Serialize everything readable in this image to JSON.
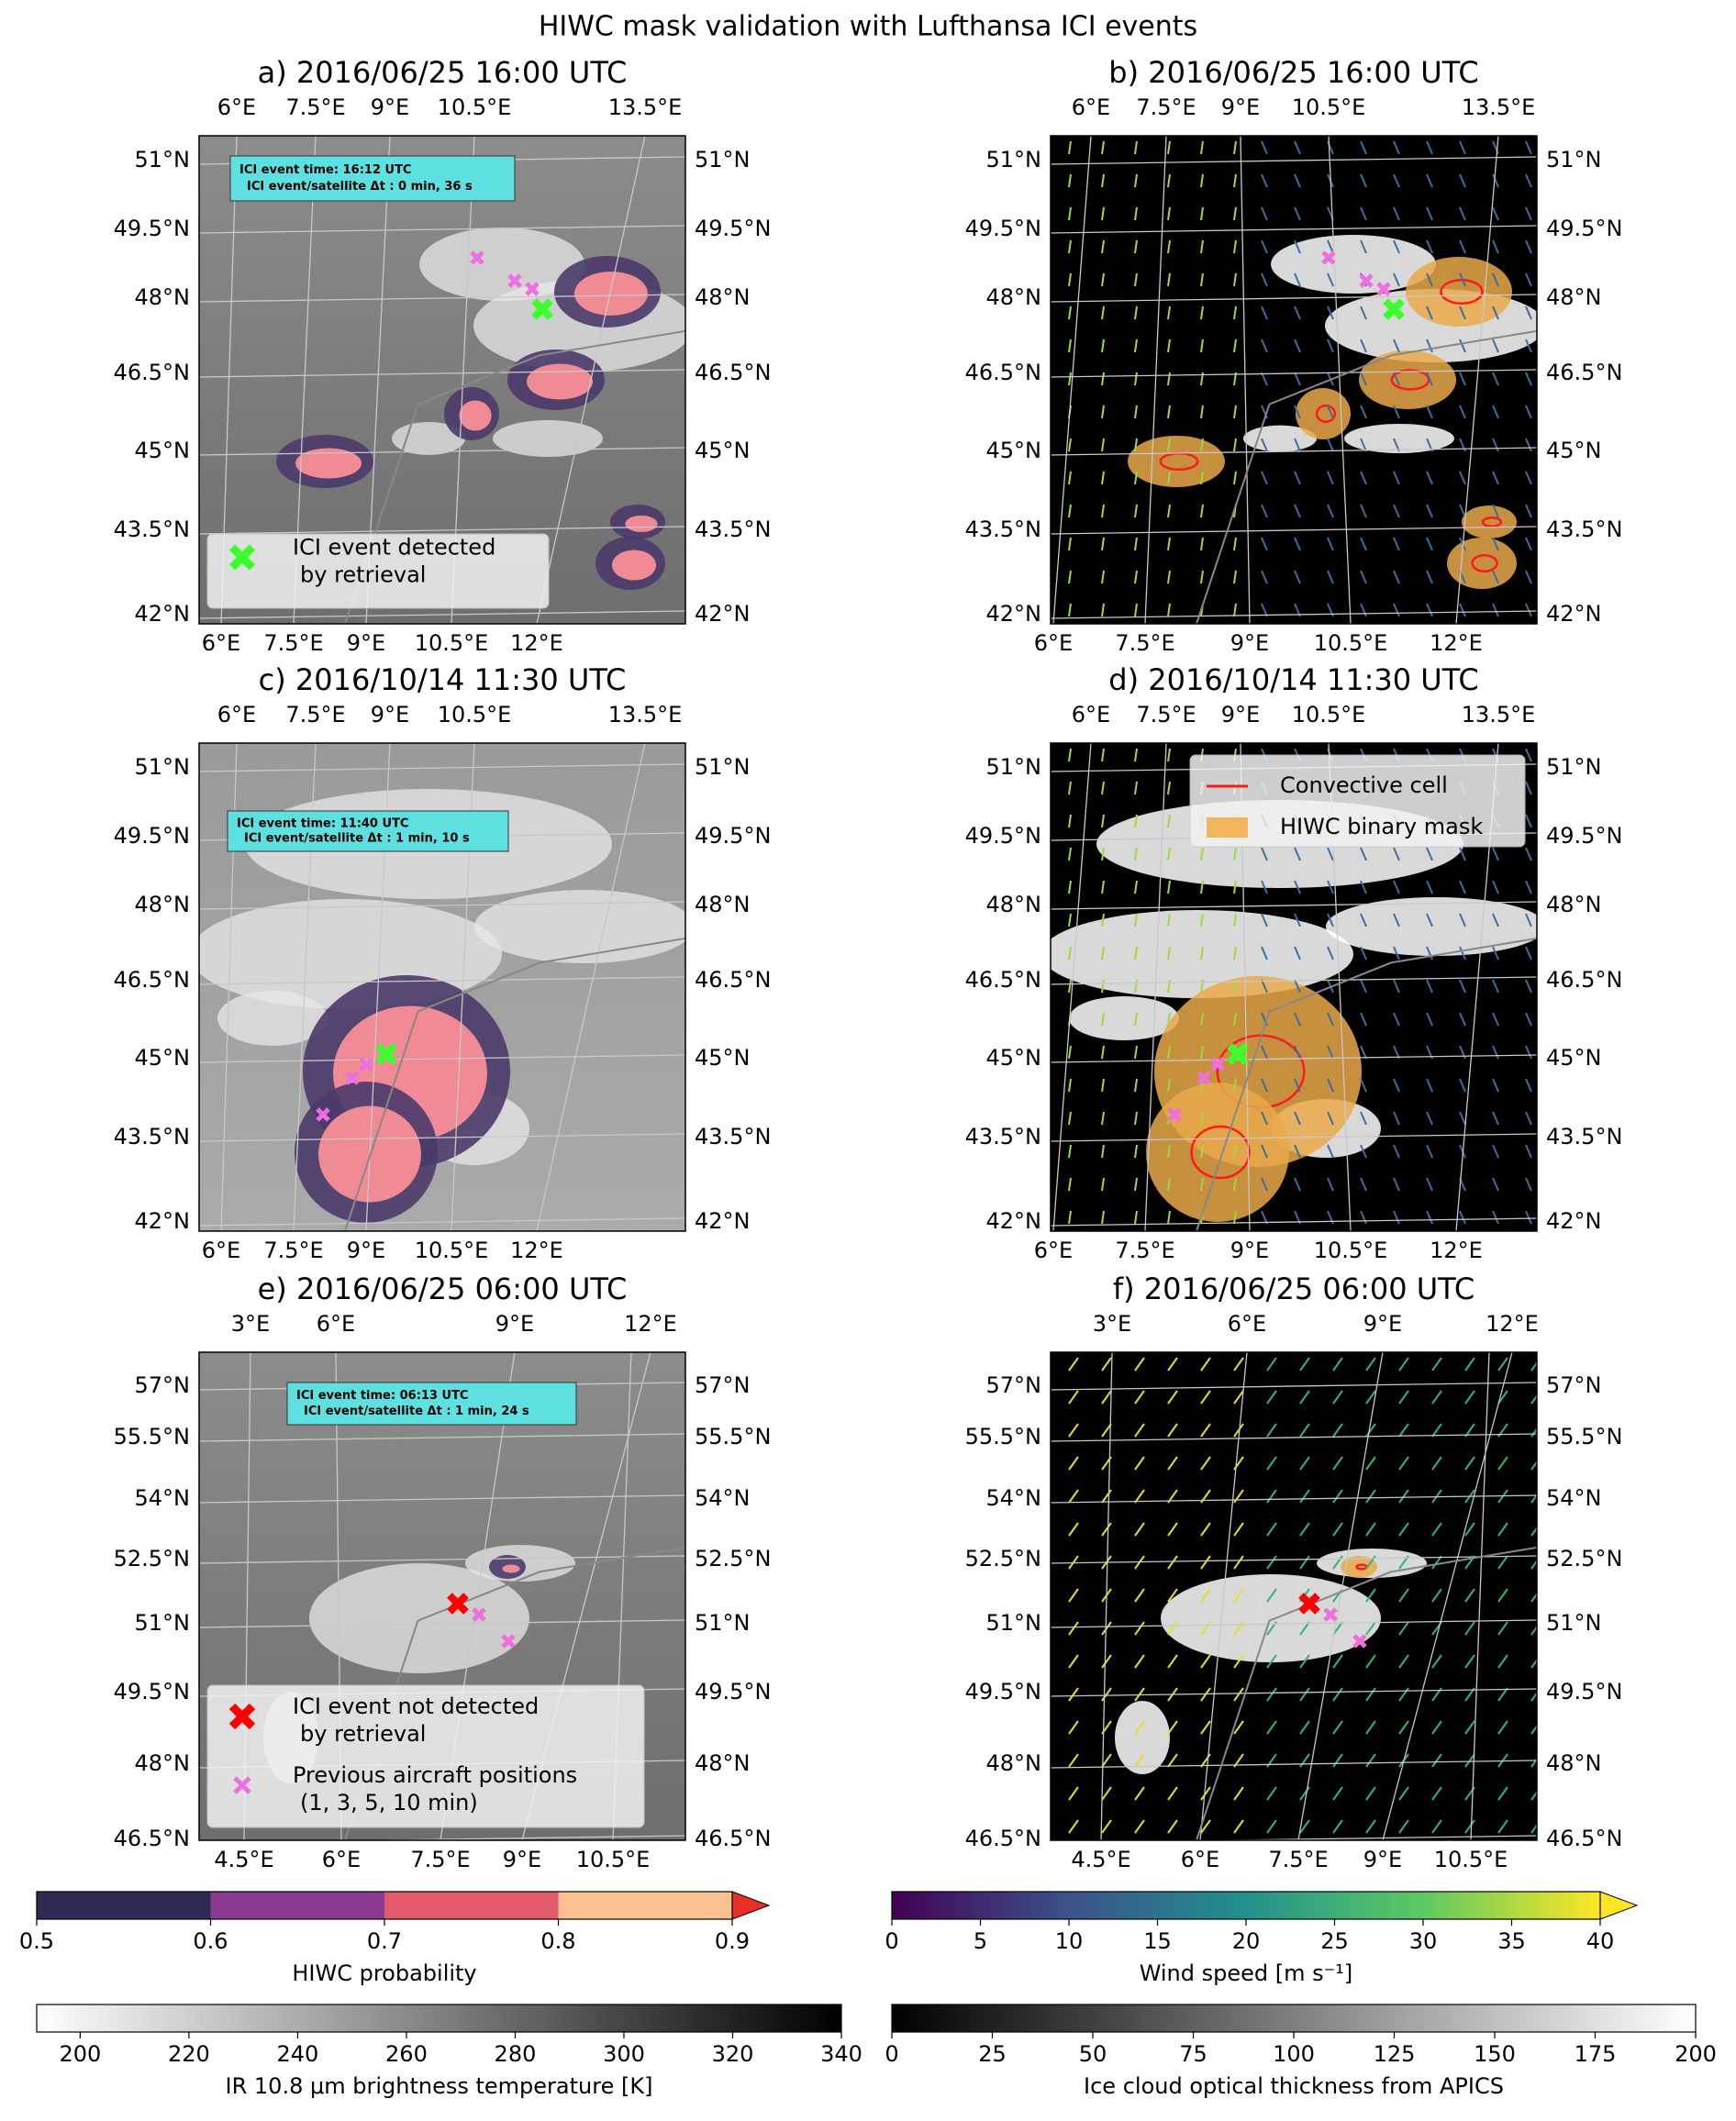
{
  "title": "HIWC mask validation with Lufthansa ICI events",
  "panels": [
    {
      "title": "a) 2016/06/25 16:00 UTC",
      "lon_top": [
        "6°E",
        "7.5°E",
        "9°E",
        "10.5°E",
        "13.5°E"
      ],
      "lon_bottom": [
        "6°E",
        "7.5°E",
        "9°E",
        "10.5°E",
        "12°E"
      ],
      "lat": [
        "51°N",
        "49.5°N",
        "48°N",
        "46.5°N",
        "45°N",
        "43.5°N",
        "42°N"
      ],
      "annotation": [
        "ICI event time: 16:12 UTC",
        "ICI event/satellite Δt : 0 min, 36 s"
      ],
      "legend": [
        {
          "lines": [
            "ICI event detected",
            "by retrieval"
          ],
          "color": "#3dff2e",
          "marker": "X"
        }
      ]
    },
    {
      "title": "b) 2016/06/25 16:00 UTC",
      "lon_top": [
        "6°E",
        "7.5°E",
        "9°E",
        "10.5°E",
        "13.5°E"
      ],
      "lon_bottom": [
        "6°E",
        "7.5°E",
        "9°E",
        "10.5°E",
        "12°E"
      ],
      "lat": [
        "51°N",
        "49.5°N",
        "48°N",
        "46.5°N",
        "45°N",
        "43.5°N",
        "42°N"
      ]
    },
    {
      "title": "c) 2016/10/14 11:30 UTC",
      "lon_top": [
        "6°E",
        "7.5°E",
        "9°E",
        "10.5°E",
        "13.5°E"
      ],
      "lon_bottom": [
        "6°E",
        "7.5°E",
        "9°E",
        "10.5°E",
        "12°E"
      ],
      "lat": [
        "51°N",
        "49.5°N",
        "48°N",
        "46.5°N",
        "45°N",
        "43.5°N",
        "42°N"
      ],
      "annotation": [
        "ICI event time: 11:40 UTC",
        "ICI event/satellite Δt : 1 min, 10 s"
      ]
    },
    {
      "title": "d) 2016/10/14 11:30 UTC",
      "lon_top": [
        "6°E",
        "7.5°E",
        "9°E",
        "10.5°E",
        "13.5°E"
      ],
      "lon_bottom": [
        "6°E",
        "7.5°E",
        "9°E",
        "10.5°E",
        "12°E"
      ],
      "lat": [
        "51°N",
        "49.5°N",
        "48°N",
        "46.5°N",
        "45°N",
        "43.5°N",
        "42°N"
      ],
      "legend": [
        {
          "lines": [
            "Convective cell"
          ],
          "color": "#ff1a1a",
          "marker": "line"
        },
        {
          "lines": [
            "HIWC binary mask"
          ],
          "color": "#f2b45c",
          "marker": "patch"
        }
      ]
    },
    {
      "title": "e) 2016/06/25 06:00 UTC",
      "lon_top": [
        "3°E",
        "6°E",
        "9°E",
        "12°E"
      ],
      "lon_bottom": [
        "4.5°E",
        "6°E",
        "7.5°E",
        "9°E",
        "10.5°E"
      ],
      "lat": [
        "57°N",
        "55.5°N",
        "54°N",
        "52.5°N",
        "51°N",
        "49.5°N",
        "48°N",
        "46.5°N"
      ],
      "annotation": [
        "ICI event time: 06:13 UTC",
        "ICI event/satellite Δt : 1 min, 24 s"
      ],
      "legend": [
        {
          "lines": [
            "ICI event not detected",
            "by retrieval"
          ],
          "color": "#ff0000",
          "marker": "X"
        },
        {
          "lines": [
            "Previous aircraft positions",
            "(1, 3, 5, 10 min)"
          ],
          "color": "#ee6fe0",
          "marker": "x"
        }
      ]
    },
    {
      "title": "f) 2016/06/25 06:00 UTC",
      "lon_top": [
        "3°E",
        "6°E",
        "9°E",
        "12°E"
      ],
      "lon_bottom": [
        "4.5°E",
        "6°E",
        "7.5°E",
        "9°E",
        "10.5°E"
      ],
      "lat": [
        "57°N",
        "55.5°N",
        "54°N",
        "52.5°N",
        "51°N",
        "49.5°N",
        "48°N",
        "46.5°N"
      ]
    }
  ],
  "colorbars": [
    {
      "label": "HIWC probability",
      "lim": [
        0.5,
        0.9
      ],
      "ticks": [
        0.5,
        0.6,
        0.7,
        0.8,
        0.9
      ],
      "style": "discrete",
      "colors": [
        "#2e2c55",
        "#8a3b8f",
        "#e35a6b",
        "#fdc190"
      ],
      "extend_color": "#e8302a"
    },
    {
      "label": "Wind speed [m s⁻¹]",
      "lim": [
        0,
        40
      ],
      "ticks": [
        0,
        5,
        10,
        15,
        20,
        25,
        30,
        35,
        40
      ],
      "style": "gradient",
      "colors": [
        "#440154",
        "#3b528b",
        "#21918c",
        "#5ec962",
        "#fde725"
      ],
      "extend_color": "#fde725"
    },
    {
      "label": "IR 10.8 μm brightness temperature [K]",
      "lim": [
        192,
        340
      ],
      "ticks": [
        200,
        220,
        240,
        260,
        280,
        300,
        320,
        340
      ],
      "style": "gradient",
      "colors": [
        "#ffffff",
        "#000000"
      ]
    },
    {
      "label": "Ice cloud optical thickness from APICS",
      "lim": [
        0,
        200
      ],
      "ticks": [
        0,
        25,
        50,
        75,
        100,
        125,
        150,
        175,
        200
      ],
      "style": "gradient",
      "colors": [
        "#000000",
        "#ffffff"
      ]
    }
  ]
}
